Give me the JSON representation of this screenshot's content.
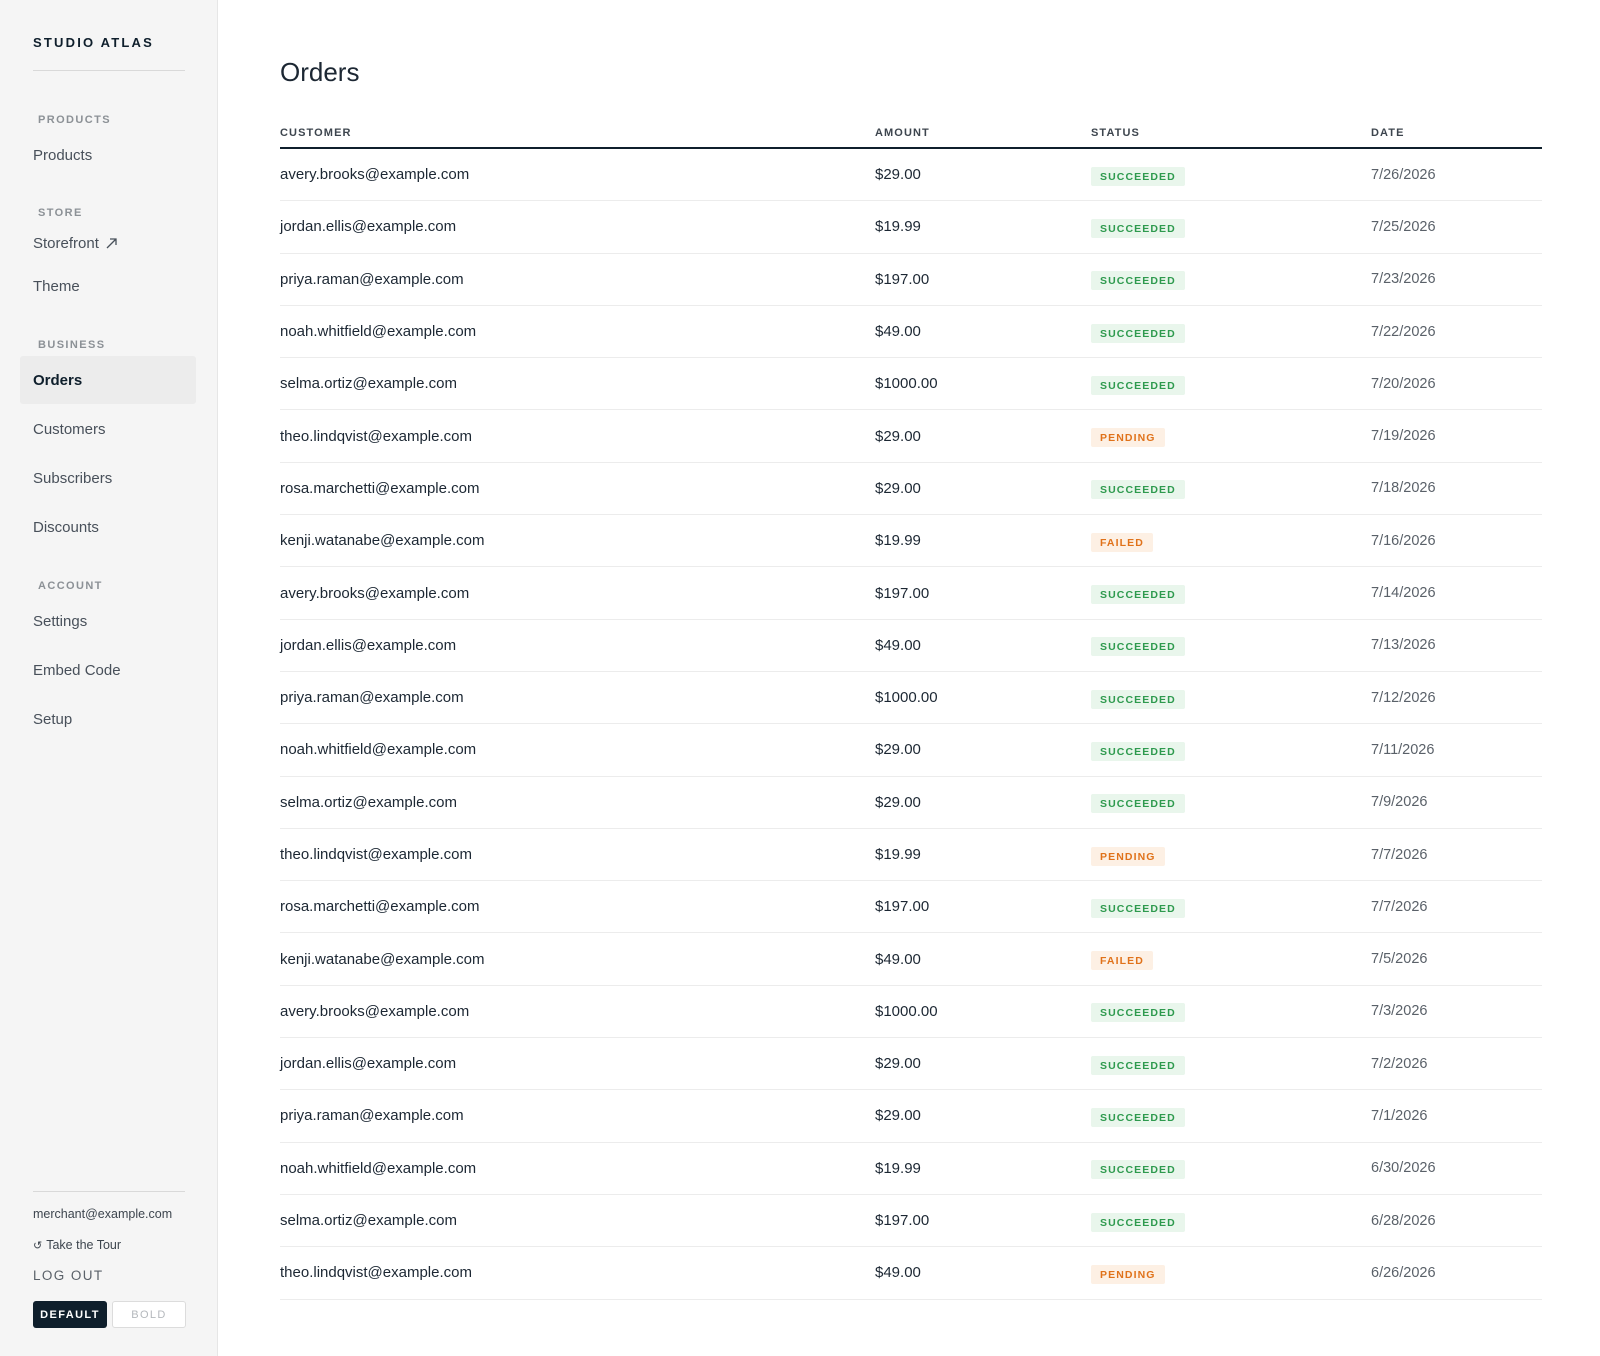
{
  "brand": "STUDIO ATLAS",
  "sidebar": {
    "sections": [
      {
        "heading": "PRODUCTS",
        "items": [
          {
            "label": "Products"
          }
        ]
      },
      {
        "heading": "STORE",
        "items": [
          {
            "label": "Storefront",
            "icon": "external-link-icon"
          },
          {
            "label": "Theme"
          }
        ]
      },
      {
        "heading": "BUSINESS",
        "items": [
          {
            "label": "Orders",
            "active": true
          },
          {
            "label": "Customers"
          },
          {
            "label": "Subscribers"
          },
          {
            "label": "Discounts"
          }
        ]
      },
      {
        "heading": "ACCOUNT",
        "items": [
          {
            "label": "Settings"
          },
          {
            "label": "Embed Code"
          },
          {
            "label": "Setup"
          }
        ]
      }
    ],
    "footer": {
      "email": "merchant@example.com",
      "tour_label": "Take the Tour",
      "tour_icon": "refresh-icon",
      "logout_label": "LOG OUT",
      "theme_default_label": "DEFAULT",
      "theme_bold_label": "BOLD"
    }
  },
  "main": {
    "title": "Orders",
    "columns": {
      "customer": "CUSTOMER",
      "amount": "AMOUNT",
      "status": "STATUS",
      "date": "DATE"
    },
    "rows": [
      {
        "customer": "avery.brooks@example.com",
        "amount": "$29.00",
        "status": "SUCCEEDED",
        "date": "7/26/2026"
      },
      {
        "customer": "jordan.ellis@example.com",
        "amount": "$19.99",
        "status": "SUCCEEDED",
        "date": "7/25/2026"
      },
      {
        "customer": "priya.raman@example.com",
        "amount": "$197.00",
        "status": "SUCCEEDED",
        "date": "7/23/2026"
      },
      {
        "customer": "noah.whitfield@example.com",
        "amount": "$49.00",
        "status": "SUCCEEDED",
        "date": "7/22/2026"
      },
      {
        "customer": "selma.ortiz@example.com",
        "amount": "$1000.00",
        "status": "SUCCEEDED",
        "date": "7/20/2026"
      },
      {
        "customer": "theo.lindqvist@example.com",
        "amount": "$29.00",
        "status": "PENDING",
        "date": "7/19/2026"
      },
      {
        "customer": "rosa.marchetti@example.com",
        "amount": "$29.00",
        "status": "SUCCEEDED",
        "date": "7/18/2026"
      },
      {
        "customer": "kenji.watanabe@example.com",
        "amount": "$19.99",
        "status": "FAILED",
        "date": "7/16/2026"
      },
      {
        "customer": "avery.brooks@example.com",
        "amount": "$197.00",
        "status": "SUCCEEDED",
        "date": "7/14/2026"
      },
      {
        "customer": "jordan.ellis@example.com",
        "amount": "$49.00",
        "status": "SUCCEEDED",
        "date": "7/13/2026"
      },
      {
        "customer": "priya.raman@example.com",
        "amount": "$1000.00",
        "status": "SUCCEEDED",
        "date": "7/12/2026"
      },
      {
        "customer": "noah.whitfield@example.com",
        "amount": "$29.00",
        "status": "SUCCEEDED",
        "date": "7/11/2026"
      },
      {
        "customer": "selma.ortiz@example.com",
        "amount": "$29.00",
        "status": "SUCCEEDED",
        "date": "7/9/2026"
      },
      {
        "customer": "theo.lindqvist@example.com",
        "amount": "$19.99",
        "status": "PENDING",
        "date": "7/7/2026"
      },
      {
        "customer": "rosa.marchetti@example.com",
        "amount": "$197.00",
        "status": "SUCCEEDED",
        "date": "7/7/2026"
      },
      {
        "customer": "kenji.watanabe@example.com",
        "amount": "$49.00",
        "status": "FAILED",
        "date": "7/5/2026"
      },
      {
        "customer": "avery.brooks@example.com",
        "amount": "$1000.00",
        "status": "SUCCEEDED",
        "date": "7/3/2026"
      },
      {
        "customer": "jordan.ellis@example.com",
        "amount": "$29.00",
        "status": "SUCCEEDED",
        "date": "7/2/2026"
      },
      {
        "customer": "priya.raman@example.com",
        "amount": "$29.00",
        "status": "SUCCEEDED",
        "date": "7/1/2026"
      },
      {
        "customer": "noah.whitfield@example.com",
        "amount": "$19.99",
        "status": "SUCCEEDED",
        "date": "6/30/2026"
      },
      {
        "customer": "selma.ortiz@example.com",
        "amount": "$197.00",
        "status": "SUCCEEDED",
        "date": "6/28/2026"
      },
      {
        "customer": "theo.lindqvist@example.com",
        "amount": "$49.00",
        "status": "PENDING",
        "date": "6/26/2026"
      }
    ]
  },
  "colors": {
    "brand_dark": "#0f1f2c",
    "succeeded_text": "#2e9a4e",
    "succeeded_bg": "#e9f6ec",
    "pending_text": "#e0721a",
    "pending_bg": "#fdf0e4"
  }
}
